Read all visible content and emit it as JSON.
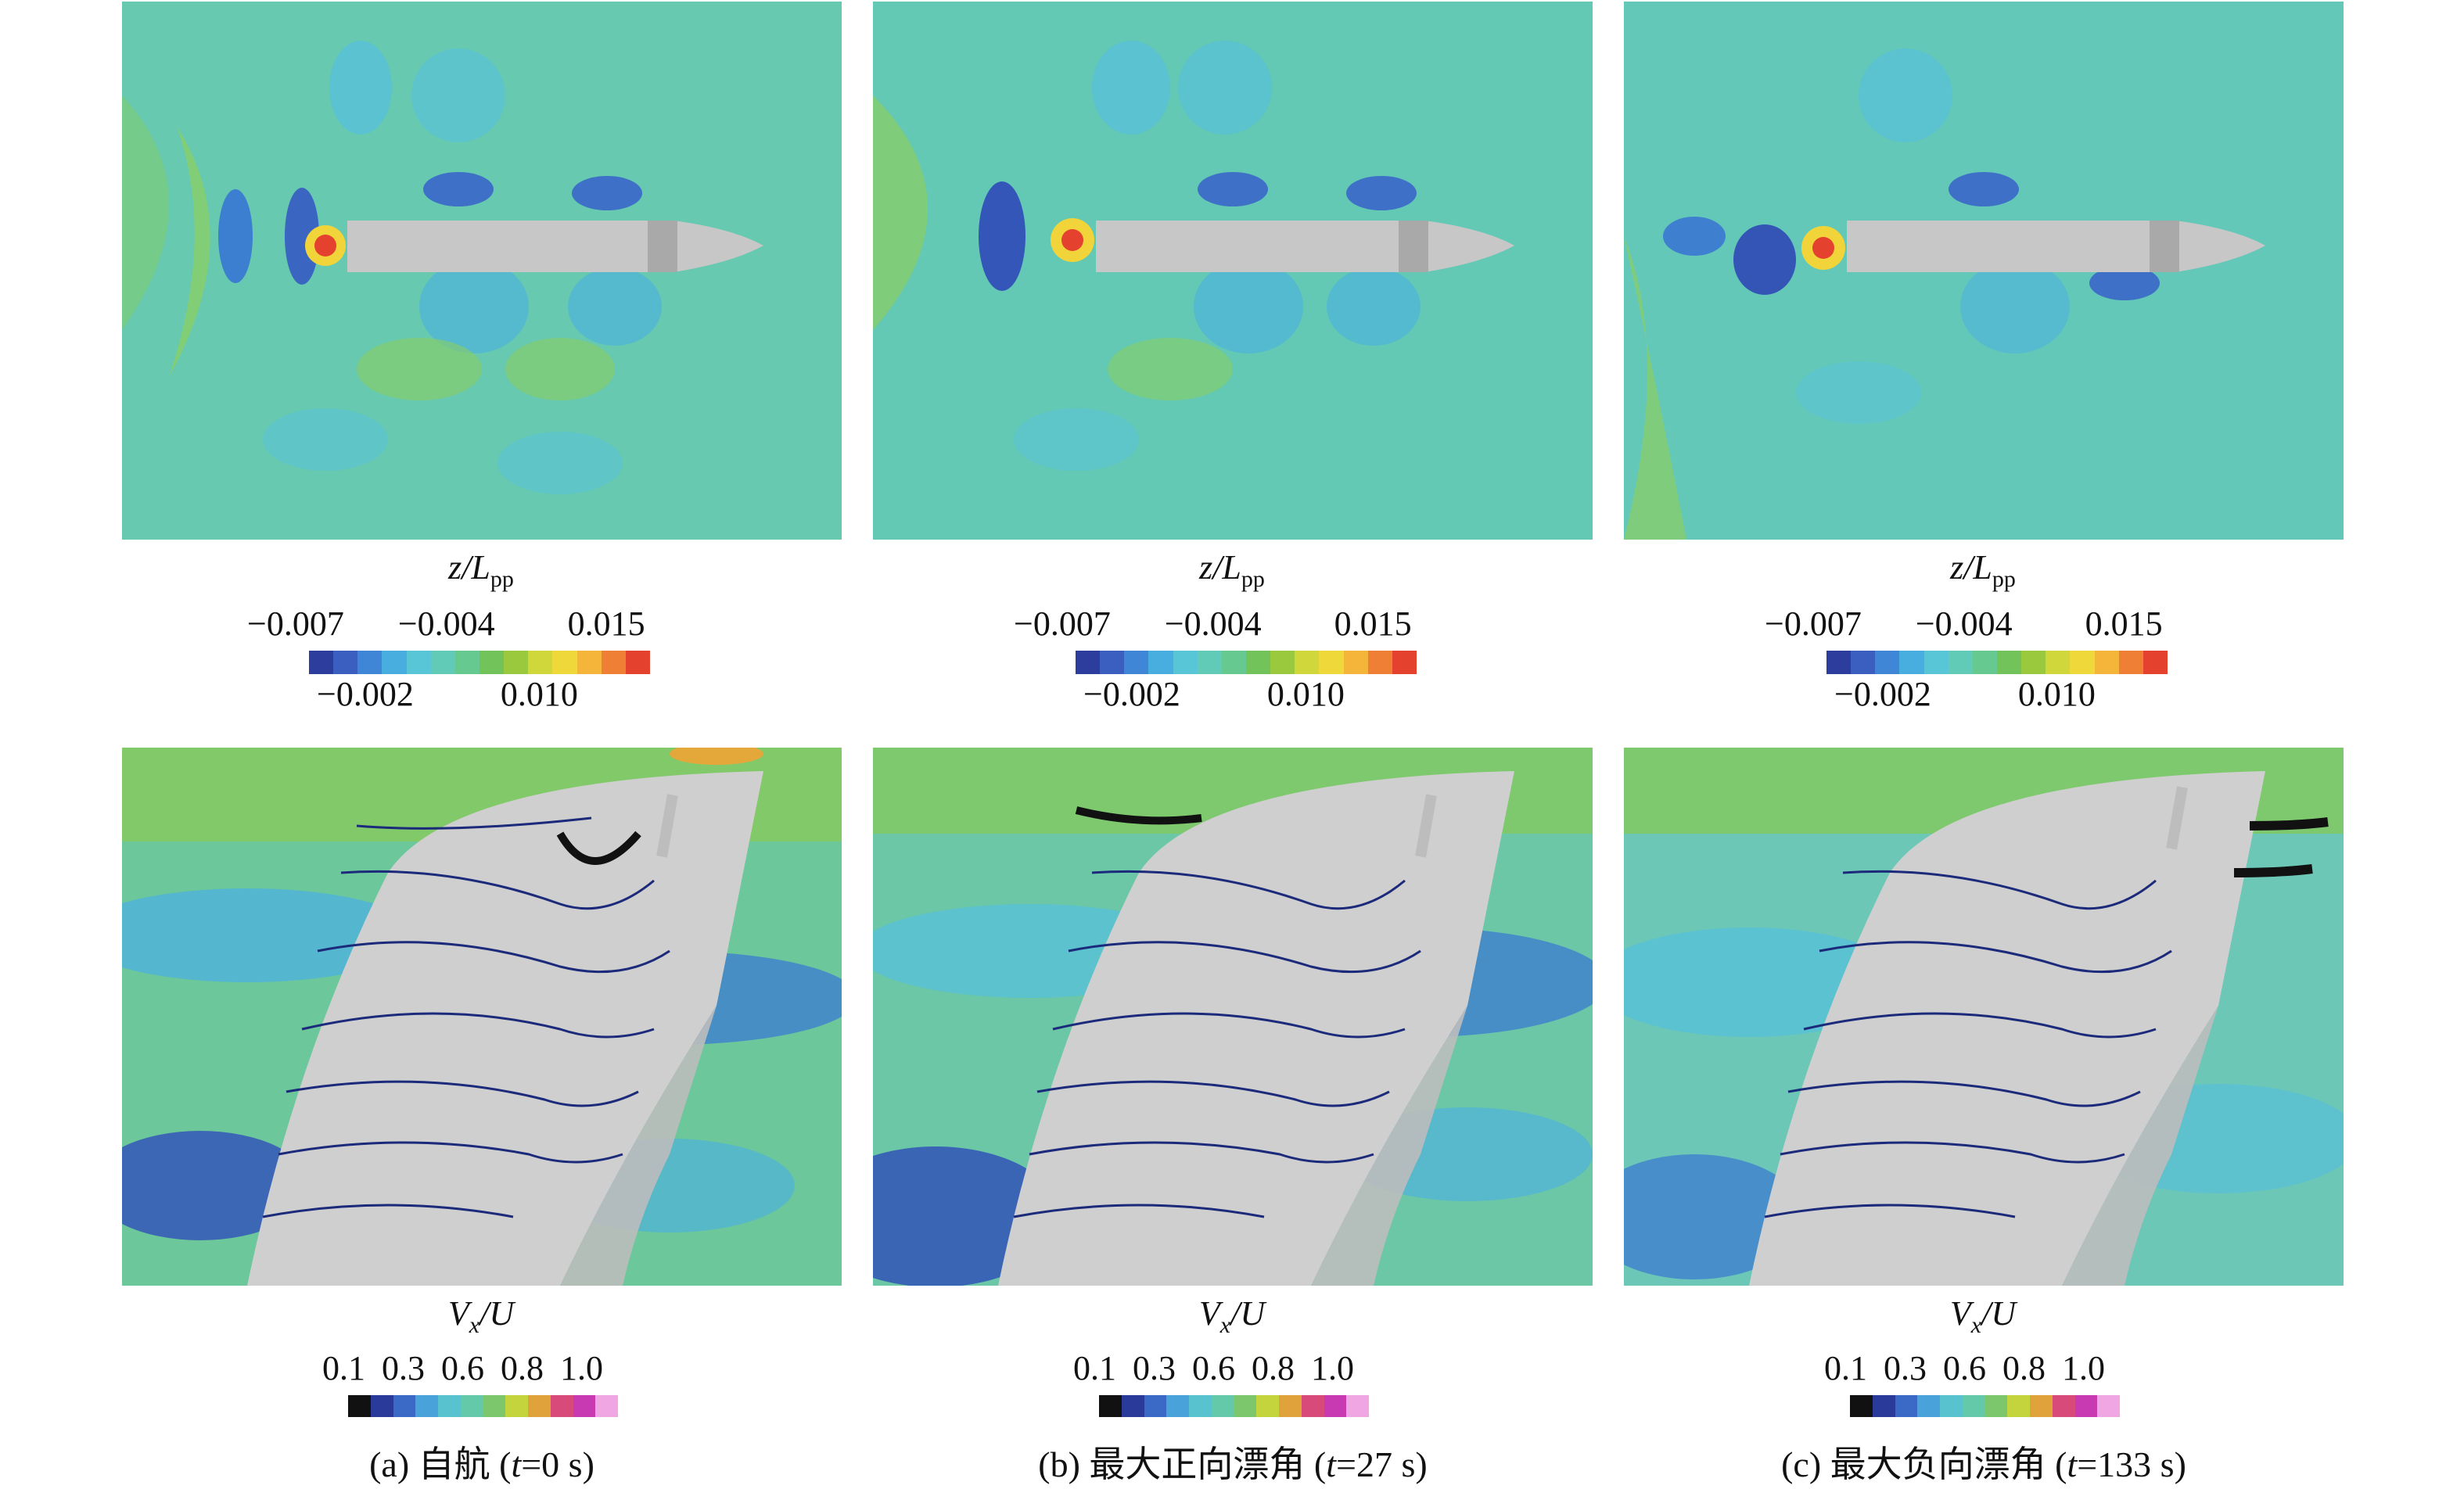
{
  "surface_colorbar": {
    "title_main": "z/L",
    "title_sub": "pp",
    "upper_ticks": [
      "−0.007",
      "−0.004",
      "0.015"
    ],
    "lower_ticks": [
      "−0.002",
      "0.010"
    ],
    "colors": [
      "#2c3d9e",
      "#3b5fc0",
      "#3f86d6",
      "#48aee0",
      "#58c6d6",
      "#62cbb7",
      "#66c98f",
      "#71c35a",
      "#9ac93d",
      "#cfd73a",
      "#efd93a",
      "#f5b43a",
      "#ef7f35",
      "#e4412e"
    ]
  },
  "velocity_colorbar": {
    "title_main": "V",
    "title_sub": "x",
    "title_tail": "/U",
    "ticks": [
      "0.1",
      "0.3",
      "0.6",
      "0.8",
      "1.0"
    ],
    "colors": [
      "#111111",
      "#2a3a9b",
      "#3b6ac6",
      "#4aa2da",
      "#58c3cf",
      "#64c9a9",
      "#7cc66b",
      "#c4d43d",
      "#e0a23a",
      "#d84a7a",
      "#c83ab1",
      "#f0a6e3"
    ]
  },
  "panels": [
    {
      "id": "a",
      "caption_prefix": "(a) 自航 (",
      "t_label": "t",
      "caption_suffix": "=0 s)"
    },
    {
      "id": "b",
      "caption_prefix": "(b) 最大正向漂角 (",
      "t_label": "t",
      "caption_suffix": "=27 s)"
    },
    {
      "id": "c",
      "caption_prefix": "(c) 最大负向漂角 (",
      "t_label": "t",
      "caption_suffix": "=133 s)"
    }
  ]
}
